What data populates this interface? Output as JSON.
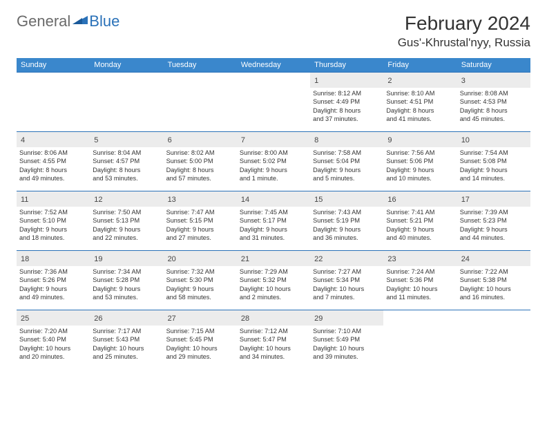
{
  "logo": {
    "general": "General",
    "blue": "Blue"
  },
  "title": {
    "month_year": "February 2024",
    "location": "Gus'-Khrustal'nyy, Russia"
  },
  "colors": {
    "header_bg": "#3a87cc",
    "border": "#2a71b8",
    "daynum_bg": "#ececec",
    "text": "#333333",
    "logo_gray": "#6a6a6a",
    "logo_blue": "#2a71b8"
  },
  "day_names": [
    "Sunday",
    "Monday",
    "Tuesday",
    "Wednesday",
    "Thursday",
    "Friday",
    "Saturday"
  ],
  "weeks": [
    [
      {
        "empty": true
      },
      {
        "empty": true
      },
      {
        "empty": true
      },
      {
        "empty": true
      },
      {
        "n": "1",
        "sunrise": "Sunrise: 8:12 AM",
        "sunset": "Sunset: 4:49 PM",
        "dl1": "Daylight: 8 hours",
        "dl2": "and 37 minutes."
      },
      {
        "n": "2",
        "sunrise": "Sunrise: 8:10 AM",
        "sunset": "Sunset: 4:51 PM",
        "dl1": "Daylight: 8 hours",
        "dl2": "and 41 minutes."
      },
      {
        "n": "3",
        "sunrise": "Sunrise: 8:08 AM",
        "sunset": "Sunset: 4:53 PM",
        "dl1": "Daylight: 8 hours",
        "dl2": "and 45 minutes."
      }
    ],
    [
      {
        "n": "4",
        "sunrise": "Sunrise: 8:06 AM",
        "sunset": "Sunset: 4:55 PM",
        "dl1": "Daylight: 8 hours",
        "dl2": "and 49 minutes."
      },
      {
        "n": "5",
        "sunrise": "Sunrise: 8:04 AM",
        "sunset": "Sunset: 4:57 PM",
        "dl1": "Daylight: 8 hours",
        "dl2": "and 53 minutes."
      },
      {
        "n": "6",
        "sunrise": "Sunrise: 8:02 AM",
        "sunset": "Sunset: 5:00 PM",
        "dl1": "Daylight: 8 hours",
        "dl2": "and 57 minutes."
      },
      {
        "n": "7",
        "sunrise": "Sunrise: 8:00 AM",
        "sunset": "Sunset: 5:02 PM",
        "dl1": "Daylight: 9 hours",
        "dl2": "and 1 minute."
      },
      {
        "n": "8",
        "sunrise": "Sunrise: 7:58 AM",
        "sunset": "Sunset: 5:04 PM",
        "dl1": "Daylight: 9 hours",
        "dl2": "and 5 minutes."
      },
      {
        "n": "9",
        "sunrise": "Sunrise: 7:56 AM",
        "sunset": "Sunset: 5:06 PM",
        "dl1": "Daylight: 9 hours",
        "dl2": "and 10 minutes."
      },
      {
        "n": "10",
        "sunrise": "Sunrise: 7:54 AM",
        "sunset": "Sunset: 5:08 PM",
        "dl1": "Daylight: 9 hours",
        "dl2": "and 14 minutes."
      }
    ],
    [
      {
        "n": "11",
        "sunrise": "Sunrise: 7:52 AM",
        "sunset": "Sunset: 5:10 PM",
        "dl1": "Daylight: 9 hours",
        "dl2": "and 18 minutes."
      },
      {
        "n": "12",
        "sunrise": "Sunrise: 7:50 AM",
        "sunset": "Sunset: 5:13 PM",
        "dl1": "Daylight: 9 hours",
        "dl2": "and 22 minutes."
      },
      {
        "n": "13",
        "sunrise": "Sunrise: 7:47 AM",
        "sunset": "Sunset: 5:15 PM",
        "dl1": "Daylight: 9 hours",
        "dl2": "and 27 minutes."
      },
      {
        "n": "14",
        "sunrise": "Sunrise: 7:45 AM",
        "sunset": "Sunset: 5:17 PM",
        "dl1": "Daylight: 9 hours",
        "dl2": "and 31 minutes."
      },
      {
        "n": "15",
        "sunrise": "Sunrise: 7:43 AM",
        "sunset": "Sunset: 5:19 PM",
        "dl1": "Daylight: 9 hours",
        "dl2": "and 36 minutes."
      },
      {
        "n": "16",
        "sunrise": "Sunrise: 7:41 AM",
        "sunset": "Sunset: 5:21 PM",
        "dl1": "Daylight: 9 hours",
        "dl2": "and 40 minutes."
      },
      {
        "n": "17",
        "sunrise": "Sunrise: 7:39 AM",
        "sunset": "Sunset: 5:23 PM",
        "dl1": "Daylight: 9 hours",
        "dl2": "and 44 minutes."
      }
    ],
    [
      {
        "n": "18",
        "sunrise": "Sunrise: 7:36 AM",
        "sunset": "Sunset: 5:26 PM",
        "dl1": "Daylight: 9 hours",
        "dl2": "and 49 minutes."
      },
      {
        "n": "19",
        "sunrise": "Sunrise: 7:34 AM",
        "sunset": "Sunset: 5:28 PM",
        "dl1": "Daylight: 9 hours",
        "dl2": "and 53 minutes."
      },
      {
        "n": "20",
        "sunrise": "Sunrise: 7:32 AM",
        "sunset": "Sunset: 5:30 PM",
        "dl1": "Daylight: 9 hours",
        "dl2": "and 58 minutes."
      },
      {
        "n": "21",
        "sunrise": "Sunrise: 7:29 AM",
        "sunset": "Sunset: 5:32 PM",
        "dl1": "Daylight: 10 hours",
        "dl2": "and 2 minutes."
      },
      {
        "n": "22",
        "sunrise": "Sunrise: 7:27 AM",
        "sunset": "Sunset: 5:34 PM",
        "dl1": "Daylight: 10 hours",
        "dl2": "and 7 minutes."
      },
      {
        "n": "23",
        "sunrise": "Sunrise: 7:24 AM",
        "sunset": "Sunset: 5:36 PM",
        "dl1": "Daylight: 10 hours",
        "dl2": "and 11 minutes."
      },
      {
        "n": "24",
        "sunrise": "Sunrise: 7:22 AM",
        "sunset": "Sunset: 5:38 PM",
        "dl1": "Daylight: 10 hours",
        "dl2": "and 16 minutes."
      }
    ],
    [
      {
        "n": "25",
        "sunrise": "Sunrise: 7:20 AM",
        "sunset": "Sunset: 5:40 PM",
        "dl1": "Daylight: 10 hours",
        "dl2": "and 20 minutes."
      },
      {
        "n": "26",
        "sunrise": "Sunrise: 7:17 AM",
        "sunset": "Sunset: 5:43 PM",
        "dl1": "Daylight: 10 hours",
        "dl2": "and 25 minutes."
      },
      {
        "n": "27",
        "sunrise": "Sunrise: 7:15 AM",
        "sunset": "Sunset: 5:45 PM",
        "dl1": "Daylight: 10 hours",
        "dl2": "and 29 minutes."
      },
      {
        "n": "28",
        "sunrise": "Sunrise: 7:12 AM",
        "sunset": "Sunset: 5:47 PM",
        "dl1": "Daylight: 10 hours",
        "dl2": "and 34 minutes."
      },
      {
        "n": "29",
        "sunrise": "Sunrise: 7:10 AM",
        "sunset": "Sunset: 5:49 PM",
        "dl1": "Daylight: 10 hours",
        "dl2": "and 39 minutes."
      },
      {
        "empty": true
      },
      {
        "empty": true
      }
    ]
  ]
}
